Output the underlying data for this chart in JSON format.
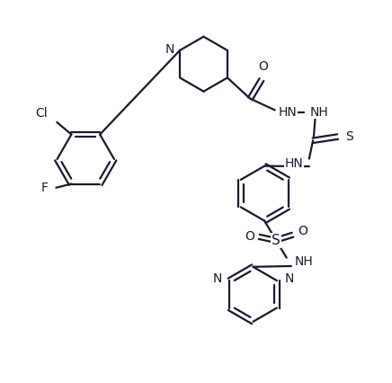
{
  "bg_color": "#ffffff",
  "line_color": "#1a1a2e",
  "line_width": 1.6,
  "font_size": 10,
  "fig_width": 4.36,
  "fig_height": 4.26,
  "dpi": 100,
  "xlim": [
    0,
    10
  ],
  "ylim": [
    0,
    10
  ]
}
